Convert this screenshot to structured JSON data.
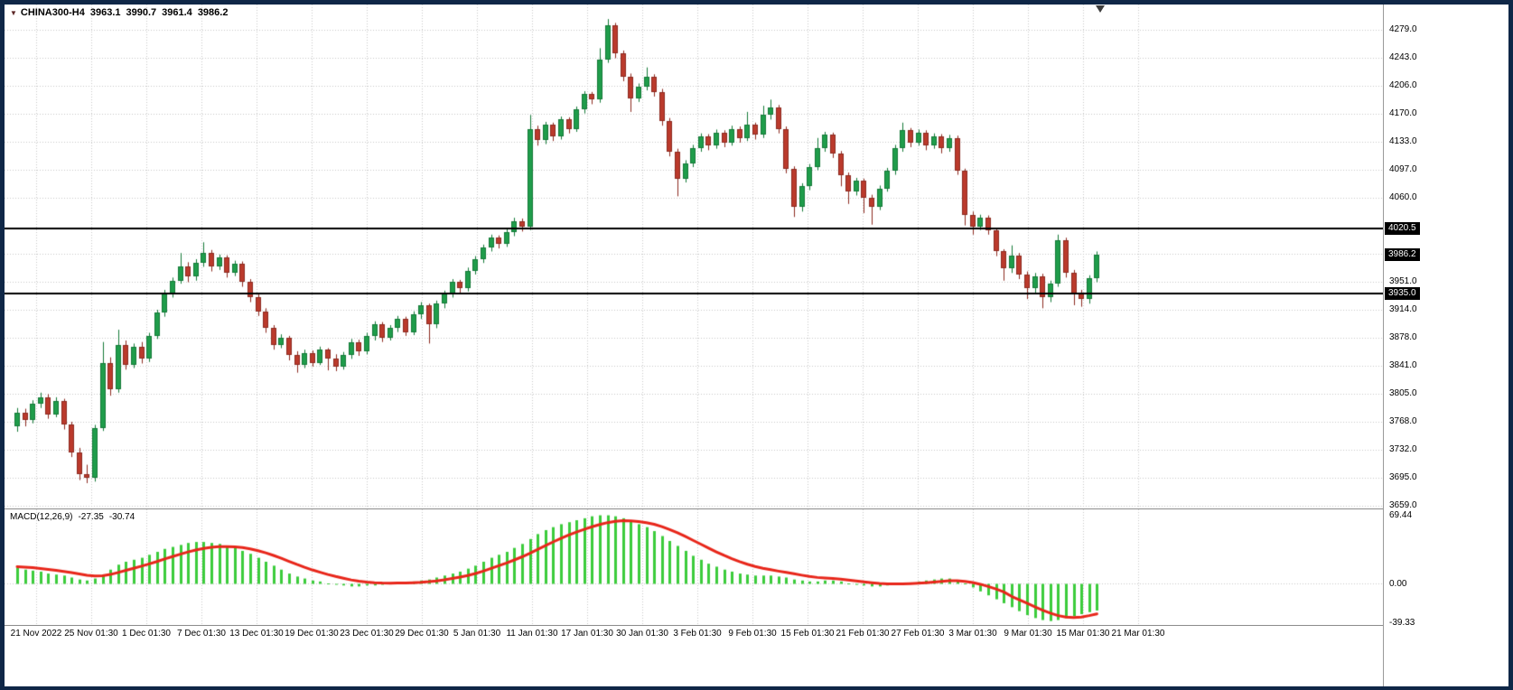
{
  "window": {
    "symbol_info": {
      "dropdown_icon": "▼",
      "symbol": "CHINA300-H4",
      "open": "3963.1",
      "high": "3990.7",
      "low": "3961.4",
      "close": "3986.2"
    },
    "colors": {
      "frame": "#0f2747",
      "background": "#ffffff",
      "grid": "#c9c9c9",
      "bull": "#1f9d4b",
      "bull_border": "#147a38",
      "bear": "#bb3a2c",
      "bear_border": "#8d2a20",
      "hline": "#000000",
      "macd_hist": "#3ccc3c",
      "macd_signal": "#e8261a",
      "axis_text": "#000000",
      "box_bg": "#000000",
      "box_text": "#ffffff"
    }
  },
  "indicator": {
    "label": "MACD(12,26,9)",
    "macd_value": "-27.35",
    "signal_value": "-30.74"
  },
  "chart_data": [
    {
      "type": "candlestick",
      "title": "CHINA300-H4",
      "timeframe": "H4",
      "ylim": [
        3655,
        4312
      ],
      "grid": true,
      "legend": "none",
      "price_gridlines": [
        4279,
        4243,
        4206,
        4170,
        4133,
        4097,
        4060,
        3987,
        3951,
        3914,
        3878,
        3841,
        3805,
        3768,
        3732,
        3695,
        3659
      ],
      "axis_labels": [
        {
          "text": "4279.0",
          "value": 4279,
          "boxed": false
        },
        {
          "text": "4243.0",
          "value": 4243,
          "boxed": false
        },
        {
          "text": "4206.0",
          "value": 4206,
          "boxed": false
        },
        {
          "text": "4170.0",
          "value": 4170,
          "boxed": false
        },
        {
          "text": "4133.0",
          "value": 4133,
          "boxed": false
        },
        {
          "text": "4097.0",
          "value": 4097,
          "boxed": false
        },
        {
          "text": "4060.0",
          "value": 4060,
          "boxed": false
        },
        {
          "text": "4020.5",
          "value": 4020.5,
          "boxed": true
        },
        {
          "text": "3986.2",
          "value": 3986.2,
          "boxed": true
        },
        {
          "text": "3951.0",
          "value": 3951,
          "boxed": false
        },
        {
          "text": "3935.0",
          "value": 3935,
          "boxed": true
        },
        {
          "text": "3914.0",
          "value": 3914,
          "boxed": false
        },
        {
          "text": "3878.0",
          "value": 3878,
          "boxed": false
        },
        {
          "text": "3841.0",
          "value": 3841,
          "boxed": false
        },
        {
          "text": "3805.0",
          "value": 3805,
          "boxed": false
        },
        {
          "text": "3768.0",
          "value": 3768,
          "boxed": false
        },
        {
          "text": "3732.0",
          "value": 3732,
          "boxed": false
        },
        {
          "text": "3695.0",
          "value": 3695,
          "boxed": false
        },
        {
          "text": "3659.0",
          "value": 3659,
          "boxed": false
        }
      ],
      "hlines": [
        4020.5,
        3935.0
      ],
      "bid": 3986.2,
      "x_labels": [
        "21 Nov 2022",
        "25 Nov 01:30",
        "1 Dec 01:30",
        "7 Dec 01:30",
        "13 Dec 01:30",
        "19 Dec 01:30",
        "23 Dec 01:30",
        "29 Dec 01:30",
        "5 Jan 01:30",
        "11 Jan 01:30",
        "17 Jan 01:30",
        "30 Jan 01:30",
        "3 Feb 01:30",
        "9 Feb 01:30",
        "15 Feb 01:30",
        "21 Feb 01:30",
        "27 Feb 01:30",
        "3 Mar 01:30",
        "9 Mar 01:30",
        "15 Mar 01:30",
        "21 Mar 01:30"
      ],
      "candles": [
        [
          3762,
          3786,
          3755,
          3780
        ],
        [
          3780,
          3785,
          3762,
          3770
        ],
        [
          3770,
          3796,
          3766,
          3792
        ],
        [
          3792,
          3806,
          3786,
          3800
        ],
        [
          3800,
          3804,
          3772,
          3778
        ],
        [
          3778,
          3800,
          3774,
          3795
        ],
        [
          3795,
          3798,
          3758,
          3765
        ],
        [
          3765,
          3768,
          3722,
          3728
        ],
        [
          3728,
          3734,
          3692,
          3700
        ],
        [
          3700,
          3712,
          3688,
          3695
        ],
        [
          3695,
          3764,
          3690,
          3760
        ],
        [
          3760,
          3872,
          3756,
          3845
        ],
        [
          3845,
          3852,
          3802,
          3810
        ],
        [
          3810,
          3888,
          3806,
          3868
        ],
        [
          3868,
          3874,
          3836,
          3842
        ],
        [
          3842,
          3870,
          3838,
          3866
        ],
        [
          3866,
          3872,
          3844,
          3850
        ],
        [
          3850,
          3884,
          3846,
          3880
        ],
        [
          3880,
          3914,
          3876,
          3910
        ],
        [
          3910,
          3940,
          3905,
          3935
        ],
        [
          3935,
          3956,
          3930,
          3952
        ],
        [
          3952,
          3988,
          3948,
          3970
        ],
        [
          3970,
          3976,
          3950,
          3958
        ],
        [
          3958,
          3980,
          3952,
          3975
        ],
        [
          3975,
          4002,
          3970,
          3988
        ],
        [
          3988,
          3992,
          3964,
          3970
        ],
        [
          3970,
          3986,
          3966,
          3982
        ],
        [
          3982,
          3985,
          3956,
          3962
        ],
        [
          3962,
          3978,
          3958,
          3974
        ],
        [
          3974,
          3977,
          3944,
          3950
        ],
        [
          3950,
          3954,
          3924,
          3930
        ],
        [
          3930,
          3936,
          3906,
          3912
        ],
        [
          3912,
          3916,
          3884,
          3890
        ],
        [
          3890,
          3894,
          3862,
          3868
        ],
        [
          3868,
          3882,
          3864,
          3878
        ],
        [
          3878,
          3880,
          3848,
          3855
        ],
        [
          3855,
          3860,
          3832,
          3842
        ],
        [
          3842,
          3862,
          3838,
          3858
        ],
        [
          3858,
          3861,
          3840,
          3845
        ],
        [
          3845,
          3866,
          3842,
          3862
        ],
        [
          3862,
          3864,
          3835,
          3850
        ],
        [
          3850,
          3856,
          3834,
          3840
        ],
        [
          3840,
          3859,
          3836,
          3855
        ],
        [
          3855,
          3876,
          3850,
          3872
        ],
        [
          3872,
          3875,
          3854,
          3860
        ],
        [
          3860,
          3884,
          3856,
          3880
        ],
        [
          3880,
          3899,
          3874,
          3895
        ],
        [
          3895,
          3898,
          3872,
          3878
        ],
        [
          3878,
          3894,
          3874,
          3890
        ],
        [
          3890,
          3906,
          3885,
          3902
        ],
        [
          3902,
          3905,
          3880,
          3885
        ],
        [
          3885,
          3912,
          3881,
          3908
        ],
        [
          3908,
          3924,
          3902,
          3920
        ],
        [
          3920,
          3922,
          3870,
          3895
        ],
        [
          3895,
          3926,
          3890,
          3922
        ],
        [
          3922,
          3939,
          3916,
          3935
        ],
        [
          3935,
          3954,
          3930,
          3950
        ],
        [
          3950,
          3953,
          3936,
          3942
        ],
        [
          3942,
          3969,
          3938,
          3965
        ],
        [
          3965,
          3984,
          3960,
          3980
        ],
        [
          3980,
          3999,
          3975,
          3995
        ],
        [
          3995,
          4012,
          3990,
          4008
        ],
        [
          4008,
          4011,
          3994,
          4000
        ],
        [
          4000,
          4019,
          3996,
          4015
        ],
        [
          4015,
          4034,
          4010,
          4030
        ],
        [
          4030,
          4033,
          4016,
          4022
        ],
        [
          4022,
          4168,
          4018,
          4150
        ],
        [
          4150,
          4154,
          4128,
          4135
        ],
        [
          4135,
          4159,
          4130,
          4155
        ],
        [
          4155,
          4158,
          4134,
          4140
        ],
        [
          4140,
          4166,
          4136,
          4162
        ],
        [
          4162,
          4165,
          4144,
          4150
        ],
        [
          4150,
          4179,
          4146,
          4175
        ],
        [
          4175,
          4199,
          4170,
          4195
        ],
        [
          4195,
          4198,
          4182,
          4188
        ],
        [
          4188,
          4255,
          4184,
          4240
        ],
        [
          4240,
          4293,
          4236,
          4285
        ],
        [
          4285,
          4288,
          4242,
          4248
        ],
        [
          4248,
          4252,
          4212,
          4218
        ],
        [
          4218,
          4222,
          4172,
          4190
        ],
        [
          4190,
          4209,
          4185,
          4205
        ],
        [
          4205,
          4230,
          4200,
          4218
        ],
        [
          4218,
          4221,
          4192,
          4198
        ],
        [
          4198,
          4202,
          4154,
          4160
        ],
        [
          4160,
          4164,
          4114,
          4120
        ],
        [
          4120,
          4124,
          4062,
          4085
        ],
        [
          4085,
          4109,
          4080,
          4105
        ],
        [
          4105,
          4129,
          4100,
          4125
        ],
        [
          4125,
          4144,
          4120,
          4140
        ],
        [
          4140,
          4143,
          4122,
          4128
        ],
        [
          4128,
          4149,
          4124,
          4145
        ],
        [
          4145,
          4148,
          4126,
          4132
        ],
        [
          4132,
          4154,
          4128,
          4150
        ],
        [
          4150,
          4153,
          4132,
          4138
        ],
        [
          4138,
          4172,
          4134,
          4155
        ],
        [
          4155,
          4158,
          4136,
          4142
        ],
        [
          4142,
          4180,
          4138,
          4168
        ],
        [
          4168,
          4188,
          4162,
          4178
        ],
        [
          4178,
          4181,
          4144,
          4150
        ],
        [
          4150,
          4153,
          4092,
          4098
        ],
        [
          4098,
          4101,
          4035,
          4048
        ],
        [
          4048,
          4079,
          4042,
          4075
        ],
        [
          4075,
          4104,
          4070,
          4100
        ],
        [
          4100,
          4138,
          4096,
          4125
        ],
        [
          4125,
          4146,
          4120,
          4142
        ],
        [
          4142,
          4145,
          4112,
          4118
        ],
        [
          4118,
          4121,
          4075,
          4090
        ],
        [
          4090,
          4093,
          4052,
          4068
        ],
        [
          4068,
          4086,
          4063,
          4082
        ],
        [
          4082,
          4085,
          4040,
          4060
        ],
        [
          4060,
          4064,
          4025,
          4048
        ],
        [
          4048,
          4076,
          4044,
          4072
        ],
        [
          4072,
          4099,
          4068,
          4095
        ],
        [
          4095,
          4129,
          4090,
          4125
        ],
        [
          4125,
          4158,
          4120,
          4148
        ],
        [
          4148,
          4151,
          4126,
          4132
        ],
        [
          4132,
          4149,
          4128,
          4145
        ],
        [
          4145,
          4148,
          4122,
          4128
        ],
        [
          4128,
          4144,
          4124,
          4140
        ],
        [
          4140,
          4143,
          4118,
          4125
        ],
        [
          4125,
          4142,
          4120,
          4138
        ],
        [
          4138,
          4141,
          4090,
          4095
        ],
        [
          4095,
          4098,
          4024,
          4038
        ],
        [
          4038,
          4042,
          4012,
          4022
        ],
        [
          4022,
          4038,
          4018,
          4034
        ],
        [
          4034,
          4037,
          4012,
          4018
        ],
        [
          4018,
          4021,
          3984,
          3990
        ],
        [
          3990,
          3993,
          3952,
          3968
        ],
        [
          3968,
          3998,
          3962,
          3985
        ],
        [
          3985,
          3988,
          3954,
          3960
        ],
        [
          3960,
          3964,
          3928,
          3942
        ],
        [
          3942,
          3962,
          3936,
          3958
        ],
        [
          3958,
          3961,
          3916,
          3930
        ],
        [
          3930,
          3952,
          3924,
          3948
        ],
        [
          3948,
          4012,
          3944,
          4005
        ],
        [
          4005,
          4008,
          3956,
          3962
        ],
        [
          3962,
          3966,
          3920,
          3935
        ],
        [
          3935,
          3940,
          3918,
          3928
        ],
        [
          3928,
          3959,
          3922,
          3955
        ],
        [
          3955,
          3990,
          3950,
          3986.2
        ]
      ]
    },
    {
      "type": "bar",
      "title": "MACD(12,26,9)",
      "ylim": [
        -42,
        75
      ],
      "zero_line": 0,
      "axis_labels": [
        {
          "text": "69.44",
          "value": 69.44
        },
        {
          "text": "0.00",
          "value": 0
        },
        {
          "text": "-39.33",
          "value": -39.33
        }
      ],
      "values": [
        16,
        14,
        13,
        12,
        10,
        9,
        8,
        6,
        4,
        3,
        5,
        9,
        14,
        19,
        22,
        24,
        26,
        29,
        32,
        35,
        37,
        39,
        41,
        42,
        42,
        41,
        40,
        38,
        36,
        33,
        30,
        26,
        22,
        18,
        14,
        10,
        7,
        5,
        3,
        2,
        0,
        -1,
        -2,
        -3,
        -3,
        -2,
        -2,
        -1,
        0,
        1,
        1,
        2,
        3,
        4,
        6,
        8,
        10,
        12,
        15,
        18,
        22,
        26,
        29,
        32,
        36,
        40,
        45,
        50,
        54,
        57,
        60,
        62,
        64,
        66,
        68,
        69,
        69,
        68,
        66,
        63,
        60,
        57,
        53,
        48,
        43,
        38,
        33,
        28,
        24,
        20,
        17,
        14,
        12,
        10,
        9,
        8,
        8,
        8,
        7,
        6,
        4,
        3,
        2,
        2,
        3,
        3,
        2,
        0,
        -1,
        -2,
        -3,
        -3,
        -2,
        -1,
        0,
        1,
        2,
        3,
        4,
        5,
        5,
        3,
        0,
        -4,
        -8,
        -12,
        -16,
        -20,
        -24,
        -28,
        -32,
        -35,
        -37,
        -38,
        -37,
        -35,
        -33,
        -31,
        -29,
        -27.35
      ],
      "signal": [
        17,
        16.5,
        16,
        15.2,
        14.2,
        13.2,
        12.2,
        11,
        9.6,
        8.3,
        7.6,
        7.9,
        9.1,
        11.1,
        13.3,
        15.4,
        17.5,
        19.8,
        22.2,
        24.8,
        27.2,
        29.6,
        31.9,
        33.9,
        35.5,
        36.6,
        37.3,
        37.4,
        37.1,
        36.3,
        35,
        33.2,
        31,
        28.4,
        25.5,
        22.4,
        19.3,
        16.4,
        13.7,
        11.4,
        9.1,
        7.1,
        5.3,
        3.6,
        2.3,
        1.4,
        0.7,
        0.4,
        0.3,
        0.4,
        0.5,
        0.8,
        1.2,
        1.8,
        2.6,
        3.7,
        5,
        6.4,
        8.1,
        10.1,
        12.5,
        15.2,
        18,
        20.8,
        23.8,
        27,
        30.6,
        34.5,
        38.4,
        42.1,
        45.7,
        49,
        52,
        54.8,
        57.4,
        59.7,
        61.6,
        62.9,
        63.5,
        63.4,
        62.7,
        61.6,
        59.9,
        57.5,
        54.6,
        51.3,
        47.6,
        43.7,
        39.8,
        35.8,
        32,
        28.4,
        25.1,
        22.1,
        19.5,
        17.2,
        15.4,
        13.9,
        12.5,
        11.2,
        9.8,
        8.4,
        7.1,
        6.1,
        5.5,
        5,
        4.4,
        3.5,
        2.6,
        1.7,
        0.8,
        0,
        -0.4,
        -0.5,
        -0.4,
        -0.1,
        0.3,
        0.8,
        1.4,
        2.1,
        2.7,
        2.8,
        2.2,
        1,
        -0.8,
        -3,
        -5.6,
        -8.5,
        -13,
        -16.5,
        -20,
        -23.5,
        -27,
        -30,
        -32.5,
        -34,
        -34.5,
        -34,
        -32.5,
        -30.74
      ]
    }
  ]
}
